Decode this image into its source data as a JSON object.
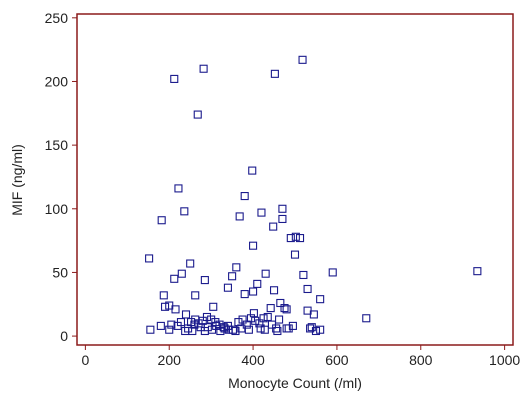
{
  "chart_data": {
    "type": "scatter",
    "xlabel": "Monocyte Count (/ml)",
    "ylabel": "MIF (ng/ml)",
    "xlim": [
      -20,
      1020
    ],
    "ylim": [
      -7,
      253
    ],
    "xticks": [
      0,
      200,
      400,
      600,
      800,
      1000
    ],
    "yticks": [
      0,
      50,
      100,
      150,
      200,
      250
    ],
    "grid": false,
    "legend": "none",
    "colors": {
      "frame": "#8b1a1a",
      "marker": "#1a1a8c"
    },
    "points": [
      [
        152,
        61
      ],
      [
        182,
        91
      ],
      [
        212,
        202
      ],
      [
        282,
        210
      ],
      [
        268,
        174
      ],
      [
        452,
        206
      ],
      [
        518,
        217
      ],
      [
        222,
        116
      ],
      [
        236,
        98
      ],
      [
        398,
        130
      ],
      [
        380,
        110
      ],
      [
        420,
        97
      ],
      [
        448,
        86
      ],
      [
        470,
        100
      ],
      [
        490,
        77
      ],
      [
        502,
        78
      ],
      [
        512,
        77
      ],
      [
        500,
        64
      ],
      [
        470,
        92
      ],
      [
        400,
        71
      ],
      [
        368,
        94
      ],
      [
        230,
        49
      ],
      [
        212,
        45
      ],
      [
        250,
        57
      ],
      [
        262,
        32
      ],
      [
        285,
        44
      ],
      [
        305,
        23
      ],
      [
        340,
        38
      ],
      [
        350,
        47
      ],
      [
        360,
        54
      ],
      [
        380,
        33
      ],
      [
        400,
        35
      ],
      [
        410,
        41
      ],
      [
        430,
        49
      ],
      [
        450,
        36
      ],
      [
        480,
        21
      ],
      [
        520,
        48
      ],
      [
        530,
        37
      ],
      [
        560,
        29
      ],
      [
        590,
        50
      ],
      [
        670,
        14
      ],
      [
        935,
        51
      ],
      [
        187,
        32
      ],
      [
        190,
        23
      ],
      [
        200,
        24
      ],
      [
        215,
        21
      ],
      [
        240,
        17
      ],
      [
        252,
        11
      ],
      [
        262,
        13
      ],
      [
        270,
        10
      ],
      [
        280,
        12
      ],
      [
        290,
        15
      ],
      [
        300,
        13
      ],
      [
        310,
        11
      ],
      [
        320,
        9
      ],
      [
        330,
        7
      ],
      [
        340,
        8
      ],
      [
        352,
        5
      ],
      [
        365,
        11
      ],
      [
        375,
        13
      ],
      [
        385,
        9
      ],
      [
        395,
        14
      ],
      [
        405,
        12
      ],
      [
        415,
        10
      ],
      [
        425,
        14
      ],
      [
        435,
        15
      ],
      [
        445,
        9
      ],
      [
        455,
        6
      ],
      [
        465,
        26
      ],
      [
        475,
        22
      ],
      [
        485,
        6
      ],
      [
        495,
        8
      ],
      [
        540,
        7
      ],
      [
        545,
        17
      ],
      [
        550,
        4
      ],
      [
        560,
        5
      ],
      [
        155,
        5
      ],
      [
        180,
        8
      ],
      [
        200,
        5
      ],
      [
        205,
        9
      ],
      [
        220,
        8
      ],
      [
        228,
        11
      ],
      [
        238,
        4
      ],
      [
        245,
        6
      ],
      [
        255,
        4
      ],
      [
        260,
        9
      ],
      [
        275,
        7
      ],
      [
        285,
        4
      ],
      [
        292,
        7
      ],
      [
        302,
        5
      ],
      [
        312,
        8
      ],
      [
        322,
        4
      ],
      [
        332,
        6
      ],
      [
        342,
        5
      ],
      [
        358,
        4
      ],
      [
        372,
        6
      ],
      [
        390,
        5
      ],
      [
        402,
        18
      ],
      [
        418,
        6
      ],
      [
        428,
        5
      ],
      [
        442,
        22
      ],
      [
        458,
        4
      ],
      [
        462,
        13
      ],
      [
        480,
        6
      ],
      [
        530,
        20
      ],
      [
        536,
        6
      ]
    ]
  }
}
